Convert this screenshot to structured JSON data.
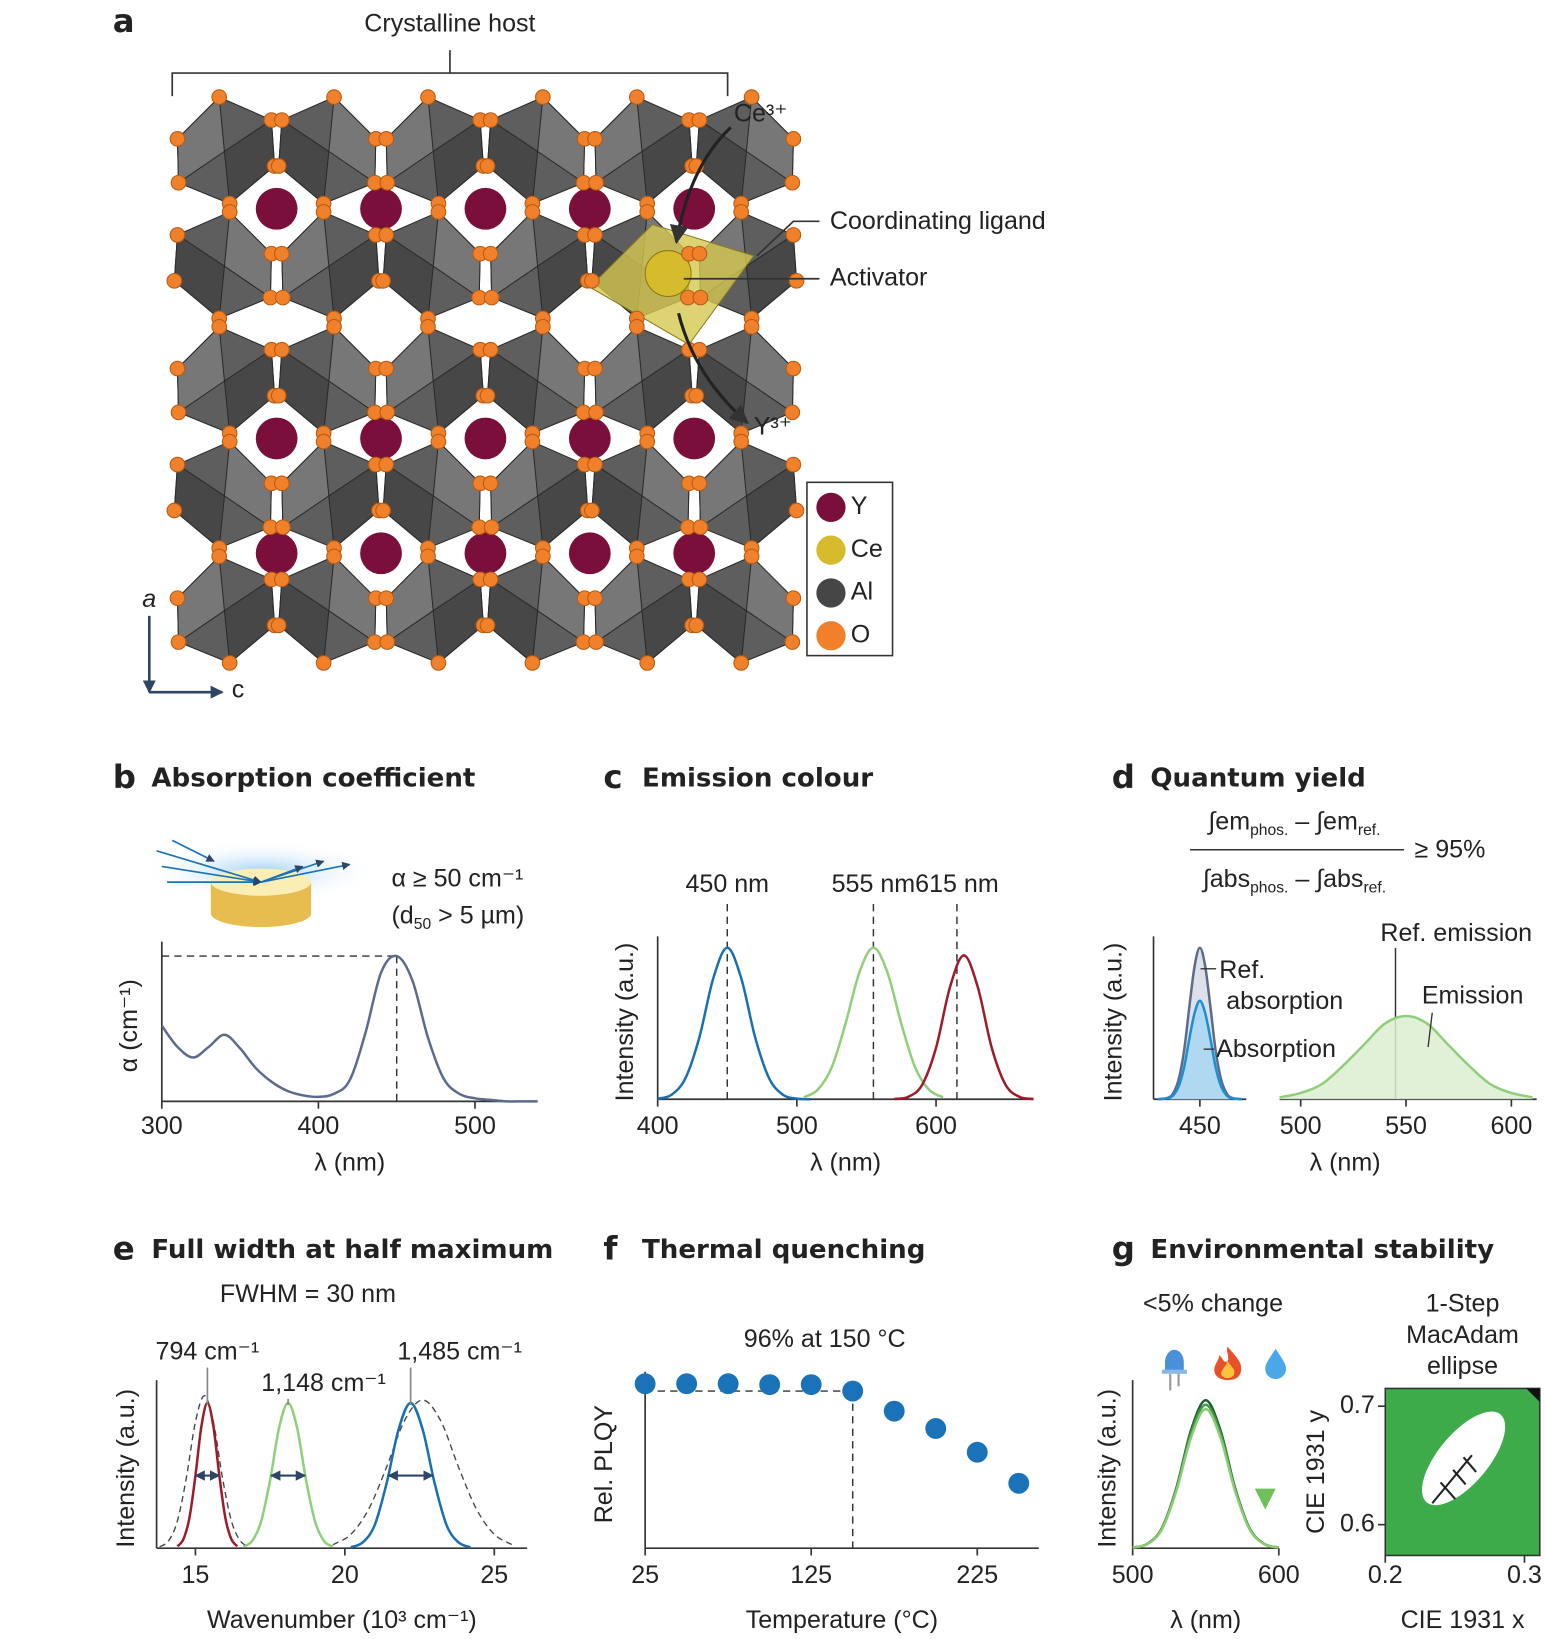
{
  "figure_a": {
    "letter": "a",
    "host_label": "Crystalline host",
    "ce_label": "Ce³⁺",
    "y_label": "Y³⁺",
    "ligand_label": "Coordinating ligand",
    "activator_label": "Activator",
    "axis_a": "a",
    "axis_c": "c",
    "legend": [
      {
        "label": "Y",
        "color": "#7a0f3c"
      },
      {
        "label": "Ce",
        "color": "#d6bb2c"
      },
      {
        "label": "Al",
        "color": "#464646"
      },
      {
        "label": "O",
        "color": "#f0802a"
      }
    ]
  },
  "chart_data": [
    {
      "letter": "b",
      "type": "line",
      "title": "Absorption coefficient",
      "annotation_lines": [
        "α ≥ 50 cm⁻¹"
      ],
      "annotation_parts": [
        "(d",
        "50",
        " > 5 µm)"
      ],
      "xlabel": "λ (nm)",
      "ylabel": "α (cm⁻¹)",
      "xlim": [
        300,
        540
      ],
      "xticks": [
        300,
        400,
        500
      ],
      "ylim": [
        0,
        1
      ],
      "guide": [
        450,
        0.96
      ],
      "series": [
        {
          "color": "#5b6b8c",
          "x": [
            300,
            310,
            320,
            330,
            340,
            350,
            360,
            370,
            380,
            390,
            400,
            410,
            420,
            430,
            440,
            450,
            460,
            470,
            480,
            490,
            500,
            510,
            520,
            530,
            540
          ],
          "values": [
            0.5,
            0.36,
            0.29,
            0.36,
            0.44,
            0.35,
            0.22,
            0.13,
            0.07,
            0.04,
            0.03,
            0.05,
            0.14,
            0.45,
            0.85,
            0.96,
            0.8,
            0.42,
            0.15,
            0.05,
            0.02,
            0.01,
            0,
            0,
            0
          ]
        }
      ]
    },
    {
      "letter": "c",
      "type": "line",
      "title": "Emission colour",
      "xlabel": "λ (nm)",
      "ylabel": "Intensity (a.u.)",
      "xlim": [
        400,
        670
      ],
      "xticks": [
        400,
        500,
        600
      ],
      "ylim": [
        0,
        1.02
      ],
      "markers": [
        {
          "x": 450,
          "label": "450 nm"
        },
        {
          "x": 555,
          "label": "555 nm"
        },
        {
          "x": 615,
          "label": "615 nm"
        }
      ],
      "series": [
        {
          "color": "#1a6fb0",
          "x": [
            400,
            410,
            420,
            430,
            440,
            450,
            460,
            470,
            480,
            490,
            500,
            510
          ],
          "values": [
            0.004,
            0.03,
            0.14,
            0.41,
            0.8,
            1,
            0.8,
            0.41,
            0.14,
            0.03,
            0.004,
            0
          ]
        },
        {
          "color": "#8fcf7a",
          "x": [
            505,
            515,
            525,
            535,
            545,
            555,
            565,
            575,
            585,
            595,
            605
          ],
          "values": [
            0.013,
            0.063,
            0.21,
            0.5,
            0.84,
            1,
            0.84,
            0.5,
            0.21,
            0.063,
            0.013
          ]
        },
        {
          "color": "#9e1b2a",
          "x": [
            570,
            580,
            590,
            600,
            610,
            620,
            630,
            640,
            650,
            660,
            670
          ],
          "values": [
            0.002,
            0.016,
            0.095,
            0.34,
            0.74,
            0.95,
            0.74,
            0.34,
            0.095,
            0.016,
            0.002
          ]
        }
      ]
    },
    {
      "letter": "d",
      "type": "area",
      "title": "Quantum yield",
      "formula": {
        "numerator": [
          "∫em",
          "phos.",
          " – ∫em",
          "ref."
        ],
        "denominator": [
          "∫abs",
          "phos.",
          " – ∫abs",
          "ref."
        ],
        "relation": "≥ 95%"
      },
      "xlabel": "λ (nm)",
      "ylabel": "Intensity (a.u.)",
      "xlim": [
        428,
        612
      ],
      "xbreak": [
        472,
        490
      ],
      "xticks": [
        450,
        500,
        550,
        600
      ],
      "ylim": [
        0,
        1.02
      ],
      "markers": [
        {
          "x": 545,
          "label": "Ref. emission"
        }
      ],
      "series": [
        {
          "name": "Ref. absorption",
          "color": "#5b6b8c",
          "fill": "#d9dce6",
          "x": [
            430,
            435,
            437.5,
            440,
            442.5,
            445,
            447.5,
            450,
            452.5,
            455,
            457.5,
            460,
            462.5,
            465,
            470
          ],
          "values": [
            0,
            0.011,
            0.044,
            0.135,
            0.32,
            0.61,
            0.88,
            1,
            0.88,
            0.61,
            0.32,
            0.135,
            0.044,
            0.011,
            0
          ]
        },
        {
          "name": "Absorption",
          "color": "#1b8fd2",
          "fill": "#a8d6f2",
          "x": [
            430,
            435,
            437.5,
            440,
            442.5,
            445,
            447.5,
            450,
            452.5,
            455,
            457.5,
            460,
            462.5,
            465,
            470
          ],
          "values": [
            0,
            0.007,
            0.029,
            0.088,
            0.21,
            0.4,
            0.57,
            0.65,
            0.57,
            0.4,
            0.21,
            0.088,
            0.029,
            0.007,
            0
          ]
        },
        {
          "name": "Emission",
          "color": "#8fcf7a",
          "fill": "#dcefd0",
          "x": [
            490,
            500,
            510,
            520,
            530,
            540,
            550,
            560,
            570,
            580,
            590,
            600,
            610
          ],
          "values": [
            0.013,
            0.042,
            0.1,
            0.22,
            0.36,
            0.5,
            0.55,
            0.5,
            0.36,
            0.22,
            0.1,
            0.042,
            0.013
          ]
        }
      ]
    },
    {
      "letter": "e",
      "type": "line",
      "title": "Full width at half maximum",
      "subtitle": "FWHM = 30 nm",
      "xlabel": "Wavenumber (10³ cm⁻¹)",
      "ylabel": "Intensity (a.u.)",
      "xlim": [
        13.7,
        26.1
      ],
      "xticks": [
        15,
        20,
        25
      ],
      "ylim": [
        0,
        1.1
      ],
      "half_max": 0.5,
      "peaks": [
        {
          "x": 15.4,
          "label": "794 cm⁻¹",
          "fwhm": [
            15.0,
            15.8
          ]
        },
        {
          "x": 18.1,
          "label": "1,148 cm⁻¹",
          "fwhm": [
            17.53,
            18.67
          ]
        },
        {
          "x": 22.2,
          "label": "1,485 cm⁻¹",
          "fwhm": [
            21.46,
            22.94
          ]
        }
      ],
      "series": [
        {
          "color": "#444",
          "dash": true,
          "x": [
            13.8,
            14.1,
            14.4,
            14.7,
            15,
            15.3,
            15.6,
            15.9,
            16.2,
            16.5,
            16.8
          ],
          "values": [
            0.01,
            0.05,
            0.19,
            0.49,
            0.87,
            1.05,
            0.87,
            0.49,
            0.19,
            0.05,
            0.01
          ]
        },
        {
          "color": "#444",
          "dash": true,
          "x": [
            19.6,
            20.2,
            20.8,
            21.4,
            22,
            22.6,
            23.2,
            23.8,
            24.4,
            25,
            25.6
          ],
          "values": [
            0.024,
            0.095,
            0.27,
            0.56,
            0.88,
            1.02,
            0.88,
            0.56,
            0.27,
            0.095,
            0.024
          ]
        },
        {
          "color": "#9e1b2a",
          "x": [
            14.4,
            14.6,
            14.8,
            15,
            15.2,
            15.4,
            15.6,
            15.8,
            16,
            16.2,
            16.4
          ],
          "values": [
            0.013,
            0.063,
            0.21,
            0.5,
            0.84,
            1,
            0.84,
            0.5,
            0.21,
            0.063,
            0.013
          ]
        },
        {
          "color": "#8fcf7a",
          "x": [
            16.6,
            16.9,
            17.2,
            17.5,
            17.8,
            18.1,
            18.4,
            18.7,
            19,
            19.3,
            19.6
          ],
          "values": [
            0.009,
            0.05,
            0.185,
            0.47,
            0.83,
            1,
            0.83,
            0.47,
            0.185,
            0.05,
            0.009
          ]
        },
        {
          "color": "#1a6fb0",
          "x": [
            20.2,
            20.6,
            21,
            21.4,
            21.8,
            22.2,
            22.6,
            23,
            23.4,
            23.8,
            24.2
          ],
          "values": [
            0.006,
            0.04,
            0.16,
            0.45,
            0.82,
            1,
            0.82,
            0.45,
            0.16,
            0.04,
            0.006
          ]
        }
      ]
    },
    {
      "letter": "f",
      "type": "scatter",
      "title": "Thermal quenching",
      "annotation": "96% at 150 °C",
      "xlabel": "Temperature (°C)",
      "ylabel": "Rel. PLQY",
      "xlim": [
        25,
        262
      ],
      "xticks": [
        25,
        125,
        225
      ],
      "ylim": [
        0.1,
        1.02
      ],
      "guide": [
        150,
        0.96
      ],
      "series": [
        {
          "color": "#1a72b8",
          "x": [
            25,
            50,
            75,
            100,
            125,
            150,
            175,
            200,
            225,
            250
          ],
          "values": [
            1,
            1,
            1,
            0.995,
            0.995,
            0.96,
            0.85,
            0.755,
            0.625,
            0.455
          ]
        }
      ]
    },
    {
      "letter": "g",
      "type": "line",
      "title": "Environmental stability",
      "subtitle": "<5% change",
      "xlabel": "λ (nm)",
      "ylabel": "Intensity (a.u.)",
      "xlim": [
        500,
        600
      ],
      "xticks": [
        500,
        600
      ],
      "ylim": [
        0,
        1.08
      ],
      "series": [
        {
          "color": "#1f5f2c",
          "x": [
            500,
            510,
            520,
            530,
            540,
            550,
            560,
            570,
            580,
            590,
            600
          ],
          "values": [
            0.004,
            0.029,
            0.135,
            0.41,
            0.8,
            1,
            0.8,
            0.41,
            0.135,
            0.029,
            0.004
          ]
        },
        {
          "color": "#3f9b47",
          "x": [
            500,
            510,
            520,
            530,
            540,
            550,
            560,
            570,
            580,
            590,
            600
          ],
          "values": [
            0.004,
            0.028,
            0.131,
            0.4,
            0.78,
            0.97,
            0.78,
            0.4,
            0.131,
            0.028,
            0.004
          ]
        },
        {
          "color": "#8ccb74",
          "x": [
            500,
            510,
            520,
            530,
            540,
            550,
            560,
            570,
            580,
            590,
            600
          ],
          "values": [
            0.004,
            0.027,
            0.127,
            0.39,
            0.75,
            0.94,
            0.75,
            0.39,
            0.127,
            0.027,
            0.004
          ]
        }
      ]
    },
    {
      "type": "region",
      "title_lines": [
        "1-Step",
        "MacAdam",
        "ellipse"
      ],
      "xlabel": "CIE 1931 x",
      "ylabel": "CIE 1931 y",
      "xlim": [
        0.2,
        0.311
      ],
      "xticks": [
        0.2,
        0.3
      ],
      "ylim": [
        0.574,
        0.715
      ],
      "yticks": [
        0.6,
        0.7
      ],
      "fill": "#3dab4a"
    }
  ]
}
